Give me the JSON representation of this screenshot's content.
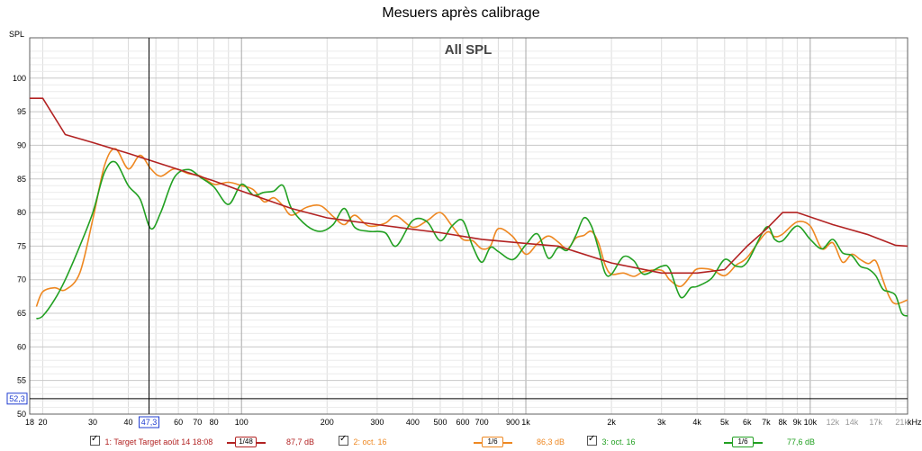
{
  "window": {
    "title": "Mesuers après calibrage"
  },
  "chart_data": {
    "type": "line",
    "title": "All SPL",
    "ylabel": "SPL",
    "xlabel": "",
    "x_unit_label": "kHz",
    "x_scale": "log",
    "xlim": [
      18,
      22000
    ],
    "ylim": [
      50,
      106
    ],
    "grid": true,
    "y_ticks": [
      50,
      55,
      60,
      65,
      70,
      75,
      80,
      85,
      90,
      95,
      100
    ],
    "x_tick_labels": [
      {
        "v": 18,
        "t": "18"
      },
      {
        "v": 20,
        "t": "20"
      },
      {
        "v": 30,
        "t": "30"
      },
      {
        "v": 40,
        "t": "40"
      },
      {
        "v": 60,
        "t": "60"
      },
      {
        "v": 70,
        "t": "70"
      },
      {
        "v": 80,
        "t": "80"
      },
      {
        "v": 100,
        "t": "100"
      },
      {
        "v": 200,
        "t": "200"
      },
      {
        "v": 300,
        "t": "300"
      },
      {
        "v": 400,
        "t": "400"
      },
      {
        "v": 500,
        "t": "500"
      },
      {
        "v": 600,
        "t": "600"
      },
      {
        "v": 700,
        "t": "700"
      },
      {
        "v": 900,
        "t": "900"
      },
      {
        "v": 1000,
        "t": "1k"
      },
      {
        "v": 2000,
        "t": "2k"
      },
      {
        "v": 3000,
        "t": "3k"
      },
      {
        "v": 4000,
        "t": "4k"
      },
      {
        "v": 5000,
        "t": "5k"
      },
      {
        "v": 6000,
        "t": "6k"
      },
      {
        "v": 7000,
        "t": "7k"
      },
      {
        "v": 8000,
        "t": "8k"
      },
      {
        "v": 9000,
        "t": "9k"
      },
      {
        "v": 10000,
        "t": "10k"
      },
      {
        "v": 12000,
        "t": "12k"
      },
      {
        "v": 14000,
        "t": "14k"
      },
      {
        "v": 17000,
        "t": "17k"
      },
      {
        "v": 21000,
        "t": "21k"
      }
    ],
    "cursor": {
      "x": 47.3,
      "x_label": "47,3",
      "y": 52.3,
      "y_label": "52,3"
    },
    "series": [
      {
        "name": "1: Target Target août 14 18:08",
        "color": "#b22222",
        "smoothing": "1/48",
        "level": "87,7 dB",
        "points": [
          [
            18,
            97
          ],
          [
            20,
            97
          ],
          [
            24,
            91.6
          ],
          [
            30,
            90.4
          ],
          [
            40,
            88.8
          ],
          [
            60,
            86.4
          ],
          [
            80,
            84.7
          ],
          [
            100,
            83.2
          ],
          [
            150,
            80.6
          ],
          [
            200,
            79.2
          ],
          [
            300,
            78.2
          ],
          [
            400,
            77.5
          ],
          [
            500,
            77.0
          ],
          [
            700,
            76.0
          ],
          [
            1000,
            75.4
          ],
          [
            1300,
            75.0
          ],
          [
            2000,
            72.5
          ],
          [
            3000,
            71.0
          ],
          [
            4000,
            71.0
          ],
          [
            5000,
            71.5
          ],
          [
            6000,
            75.0
          ],
          [
            7000,
            77.5
          ],
          [
            8000,
            80.0
          ],
          [
            9000,
            80.0
          ],
          [
            12000,
            78.2
          ],
          [
            16000,
            76.7
          ],
          [
            20000,
            75.1
          ],
          [
            22000,
            75.0
          ]
        ]
      },
      {
        "name": "2: oct. 16",
        "color": "#ee8822",
        "smoothing": "1/6",
        "level": "86,3 dB",
        "points": [
          [
            19,
            66
          ],
          [
            20,
            68.2
          ],
          [
            22,
            68.8
          ],
          [
            24,
            68.5
          ],
          [
            27,
            71
          ],
          [
            30,
            79
          ],
          [
            33,
            87
          ],
          [
            36,
            89.5
          ],
          [
            40,
            86.5
          ],
          [
            44,
            88.5
          ],
          [
            48,
            86.5
          ],
          [
            52,
            85.4
          ],
          [
            58,
            86.5
          ],
          [
            65,
            85.8
          ],
          [
            72,
            85.4
          ],
          [
            80,
            84.2
          ],
          [
            90,
            84.5
          ],
          [
            100,
            84.0
          ],
          [
            110,
            83.4
          ],
          [
            120,
            81.6
          ],
          [
            130,
            82.2
          ],
          [
            140,
            81.0
          ],
          [
            150,
            79.6
          ],
          [
            170,
            80.8
          ],
          [
            190,
            81.0
          ],
          [
            210,
            79.4
          ],
          [
            230,
            78.2
          ],
          [
            250,
            79.6
          ],
          [
            280,
            78.0
          ],
          [
            320,
            78.4
          ],
          [
            350,
            79.5
          ],
          [
            400,
            77.8
          ],
          [
            450,
            78.8
          ],
          [
            500,
            80.0
          ],
          [
            550,
            78.0
          ],
          [
            600,
            76.0
          ],
          [
            650,
            75.8
          ],
          [
            700,
            74.6
          ],
          [
            750,
            75.0
          ],
          [
            800,
            77.6
          ],
          [
            900,
            76.4
          ],
          [
            1000,
            73.8
          ],
          [
            1100,
            75.4
          ],
          [
            1200,
            76.5
          ],
          [
            1300,
            75.6
          ],
          [
            1400,
            74.6
          ],
          [
            1500,
            76.2
          ],
          [
            1600,
            76.6
          ],
          [
            1700,
            77.2
          ],
          [
            1800,
            75.5
          ],
          [
            1900,
            72.2
          ],
          [
            2000,
            70.8
          ],
          [
            2200,
            71.0
          ],
          [
            2400,
            70.5
          ],
          [
            2600,
            71.2
          ],
          [
            3000,
            71.4
          ],
          [
            3200,
            70.0
          ],
          [
            3500,
            69.0
          ],
          [
            3800,
            70.6
          ],
          [
            4000,
            71.6
          ],
          [
            4500,
            71.5
          ],
          [
            5000,
            70.6
          ],
          [
            5500,
            72.2
          ],
          [
            6000,
            73.3
          ],
          [
            7000,
            77.0
          ],
          [
            7500,
            76.4
          ],
          [
            8000,
            76.8
          ],
          [
            9000,
            78.6
          ],
          [
            10000,
            78.0
          ],
          [
            11000,
            74.6
          ],
          [
            12000,
            75.5
          ],
          [
            13000,
            72.6
          ],
          [
            14000,
            73.8
          ],
          [
            15000,
            73.0
          ],
          [
            16000,
            72.4
          ],
          [
            17000,
            72.8
          ],
          [
            18000,
            70.0
          ],
          [
            19000,
            67.4
          ],
          [
            20000,
            66.4
          ],
          [
            22000,
            67.0
          ]
        ]
      },
      {
        "name": "3: oct. 16",
        "color": "#22a022",
        "smoothing": "1/6",
        "level": "77,6 dB",
        "points": [
          [
            19,
            64.2
          ],
          [
            20,
            64.6
          ],
          [
            22,
            67.0
          ],
          [
            24,
            70.0
          ],
          [
            27,
            75.0
          ],
          [
            30,
            80.0
          ],
          [
            33,
            86.0
          ],
          [
            36,
            87.5
          ],
          [
            40,
            84.0
          ],
          [
            44,
            82.0
          ],
          [
            48,
            77.6
          ],
          [
            52,
            80.0
          ],
          [
            58,
            85.2
          ],
          [
            65,
            86.4
          ],
          [
            72,
            85.2
          ],
          [
            80,
            83.8
          ],
          [
            90,
            81.2
          ],
          [
            100,
            84.2
          ],
          [
            110,
            82.6
          ],
          [
            120,
            83.0
          ],
          [
            130,
            83.2
          ],
          [
            140,
            84.0
          ],
          [
            150,
            80.6
          ],
          [
            170,
            78.0
          ],
          [
            190,
            77.2
          ],
          [
            210,
            78.2
          ],
          [
            230,
            80.6
          ],
          [
            250,
            77.8
          ],
          [
            280,
            77.2
          ],
          [
            320,
            77.0
          ],
          [
            350,
            75.0
          ],
          [
            400,
            78.8
          ],
          [
            450,
            78.6
          ],
          [
            500,
            75.8
          ],
          [
            550,
            78.0
          ],
          [
            600,
            78.8
          ],
          [
            650,
            75.0
          ],
          [
            700,
            72.6
          ],
          [
            750,
            74.8
          ],
          [
            800,
            74.2
          ],
          [
            900,
            73.0
          ],
          [
            1000,
            75.2
          ],
          [
            1100,
            76.8
          ],
          [
            1200,
            73.2
          ],
          [
            1300,
            74.8
          ],
          [
            1400,
            74.4
          ],
          [
            1500,
            76.6
          ],
          [
            1600,
            79.2
          ],
          [
            1700,
            78.0
          ],
          [
            1800,
            74.6
          ],
          [
            1900,
            71.0
          ],
          [
            2000,
            70.8
          ],
          [
            2200,
            73.4
          ],
          [
            2400,
            72.8
          ],
          [
            2600,
            70.8
          ],
          [
            3000,
            72.0
          ],
          [
            3200,
            71.6
          ],
          [
            3500,
            67.4
          ],
          [
            3800,
            68.8
          ],
          [
            4000,
            69.0
          ],
          [
            4500,
            70.2
          ],
          [
            5000,
            73.0
          ],
          [
            5500,
            72.0
          ],
          [
            6000,
            72.6
          ],
          [
            7000,
            77.8
          ],
          [
            7500,
            76.0
          ],
          [
            8000,
            75.8
          ],
          [
            9000,
            78.0
          ],
          [
            10000,
            76.0
          ],
          [
            11000,
            74.6
          ],
          [
            12000,
            76.0
          ],
          [
            13000,
            74.0
          ],
          [
            14000,
            73.6
          ],
          [
            15000,
            72.0
          ],
          [
            16000,
            71.6
          ],
          [
            17000,
            70.6
          ],
          [
            18000,
            68.6
          ],
          [
            19000,
            68.2
          ],
          [
            20000,
            67.6
          ],
          [
            21000,
            65.0
          ],
          [
            22000,
            64.6
          ]
        ]
      }
    ]
  }
}
